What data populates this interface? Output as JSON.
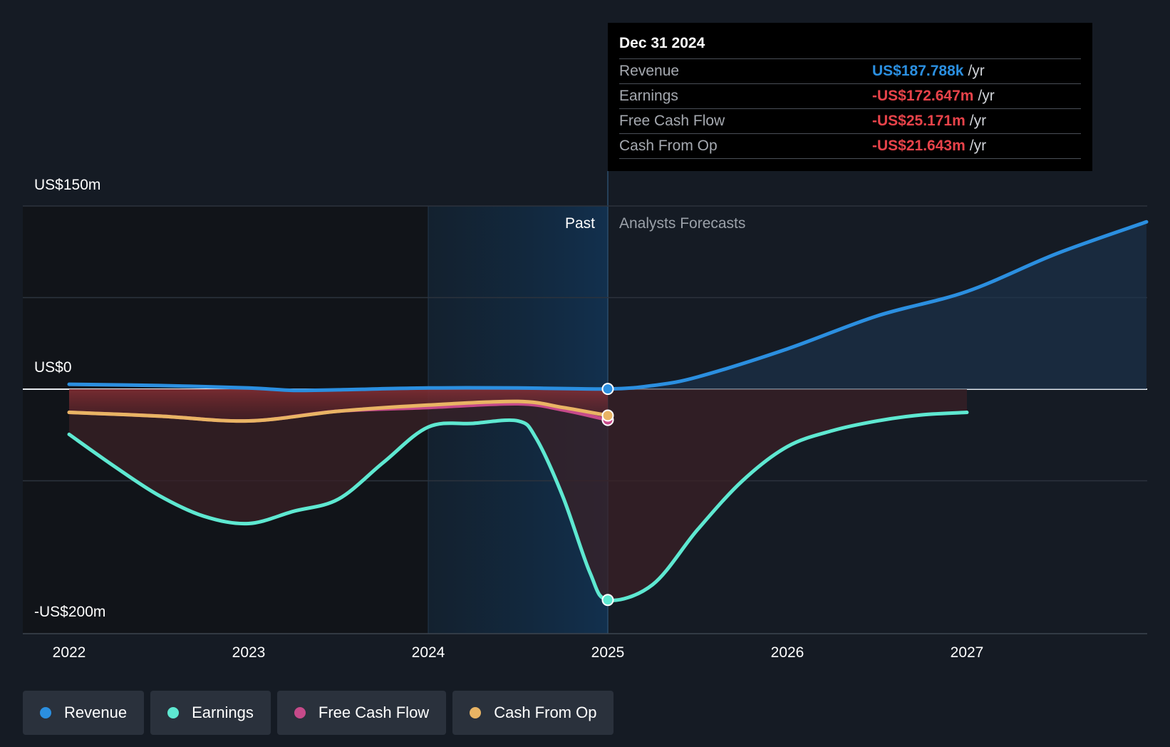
{
  "chart_data": {
    "type": "line",
    "x_unit": "year",
    "x_ticks": [
      "2022",
      "2023",
      "2024",
      "2025",
      "2026",
      "2027"
    ],
    "y_axis_labels": [
      "US$150m",
      "US$0",
      "-US$200m"
    ],
    "ylim": [
      -200,
      150
    ],
    "y_unit": "US$m",
    "regions": {
      "past_label": "Past",
      "forecast_label": "Analysts Forecasts",
      "divider_x": 2025.0
    },
    "series": [
      {
        "name": "Revenue",
        "color": "#2b8fe0",
        "x": [
          2022.0,
          2022.5,
          2023.0,
          2023.25,
          2023.5,
          2024.0,
          2024.5,
          2025.0,
          2025.25,
          2025.5,
          2026.0,
          2026.5,
          2027.0,
          2027.5,
          2028.0
        ],
        "y": [
          4,
          3,
          1,
          -1,
          -0.5,
          1,
          1,
          0.19,
          3,
          10,
          33,
          60,
          80,
          111,
          137
        ]
      },
      {
        "name": "Earnings",
        "color": "#5ee8d1",
        "x": [
          2022.0,
          2022.25,
          2022.5,
          2022.75,
          2023.0,
          2023.25,
          2023.5,
          2023.75,
          2024.0,
          2024.25,
          2024.5,
          2024.6,
          2024.75,
          2024.9,
          2025.0,
          2025.25,
          2025.5,
          2025.75,
          2026.0,
          2026.25,
          2026.5,
          2026.75,
          2027.0
        ],
        "y": [
          -37,
          -63,
          -87,
          -104,
          -110,
          -100,
          -90,
          -60,
          -31,
          -28,
          -26,
          -40,
          -88,
          -150,
          -172.6,
          -160,
          -115,
          -75,
          -47,
          -34,
          -26,
          -21,
          -19
        ]
      },
      {
        "name": "Free Cash Flow",
        "color": "#c64a8a",
        "x": [
          2022.0,
          2022.5,
          2023.0,
          2023.5,
          2024.0,
          2024.5,
          2024.75,
          2025.0
        ],
        "y": [
          -19,
          -22,
          -26,
          -18,
          -15,
          -12,
          -17,
          -25.2
        ]
      },
      {
        "name": "Cash From Op",
        "color": "#e9b464",
        "x": [
          2022.0,
          2022.5,
          2023.0,
          2023.5,
          2024.0,
          2024.5,
          2024.75,
          2025.0
        ],
        "y": [
          -19,
          -22,
          -26,
          -18,
          -13,
          -10,
          -15,
          -21.6
        ]
      }
    ],
    "forecast_band": {
      "x": [
        2025.0,
        2027.0
      ],
      "lower": "Earnings",
      "upper": 0
    },
    "highlight": {
      "x": 2025.0
    }
  },
  "tooltip": {
    "date": "Dec 31 2024",
    "rows": [
      {
        "label": "Revenue",
        "value": "US$187.788k",
        "unit": "/yr",
        "color": "#2b8fe0"
      },
      {
        "label": "Earnings",
        "value": "-US$172.647m",
        "unit": "/yr",
        "color": "#e8434a"
      },
      {
        "label": "Free Cash Flow",
        "value": "-US$25.171m",
        "unit": "/yr",
        "color": "#e8434a"
      },
      {
        "label": "Cash From Op",
        "value": "-US$21.643m",
        "unit": "/yr",
        "color": "#e8434a"
      }
    ]
  },
  "legend": [
    {
      "label": "Revenue",
      "color": "#2b8fe0"
    },
    {
      "label": "Earnings",
      "color": "#5ee8d1"
    },
    {
      "label": "Free Cash Flow",
      "color": "#c64a8a"
    },
    {
      "label": "Cash From Op",
      "color": "#e9b464"
    }
  ]
}
